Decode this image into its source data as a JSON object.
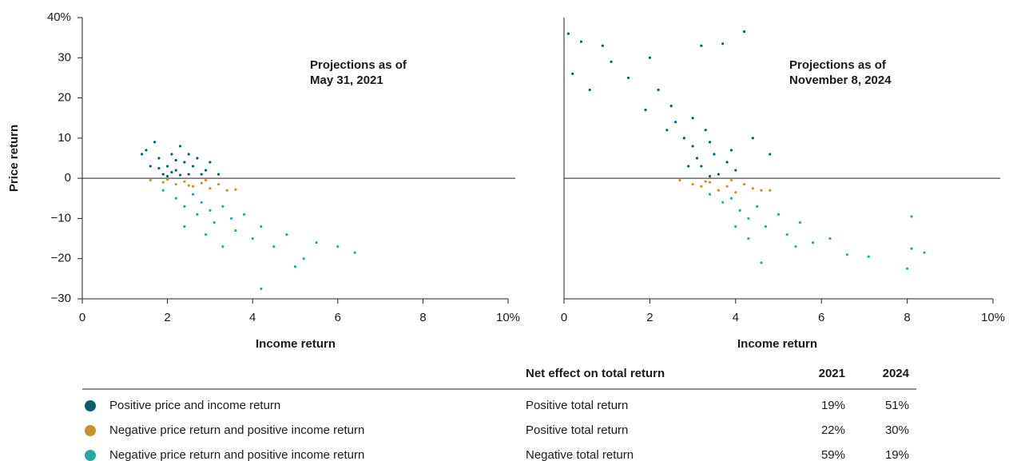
{
  "chart_data": [
    {
      "type": "scatter",
      "annotation": [
        "Projections as of",
        "May 31, 2021"
      ],
      "xlabel": "Income return",
      "ylabel": "Price return",
      "xlim": [
        0,
        10
      ],
      "ylim": [
        -30,
        40
      ],
      "xticks": [
        0,
        2,
        4,
        6,
        8,
        {
          "value": 10,
          "label": "10%"
        }
      ],
      "yticks": [
        {
          "value": -30,
          "label": "−30"
        },
        {
          "value": -20,
          "label": "−20"
        },
        {
          "value": -10,
          "label": "−10"
        },
        0,
        10,
        20,
        30,
        {
          "value": 40,
          "label": "40%"
        }
      ],
      "zero_line": true,
      "series": [
        {
          "name": "Positive price and income return",
          "color": "#04606e",
          "x": [
            1.5,
            1.7,
            1.8,
            2.0,
            2.1,
            2.2,
            2.3,
            2.4,
            2.5,
            2.6,
            1.9,
            2.0,
            2.2,
            2.7,
            2.9,
            3.0,
            1.6,
            1.4,
            2.8,
            2.1,
            2.3,
            1.8,
            2.5,
            3.2
          ],
          "values": [
            7,
            9,
            5,
            3,
            6,
            2,
            8,
            4,
            1,
            3,
            1,
            0.5,
            4.5,
            5,
            2,
            4,
            3,
            6,
            1,
            1.5,
            0.8,
            2.5,
            6,
            1
          ]
        },
        {
          "name": "Negative price return and positive income return",
          "color": "#c8902f",
          "x": [
            1.6,
            1.9,
            2.2,
            2.4,
            2.6,
            2.8,
            3.0,
            3.2,
            3.4,
            2.0,
            2.5,
            3.6,
            2.9
          ],
          "values": [
            -0.5,
            -1,
            -1.5,
            -0.8,
            -2,
            -1.2,
            -2.5,
            -1.5,
            -3,
            -0.3,
            -1.8,
            -2.8,
            -0.5
          ]
        },
        {
          "name": "Negative price return and positive income return",
          "color": "#22aaa1",
          "x": [
            1.9,
            2.2,
            2.4,
            2.6,
            2.7,
            2.8,
            3.0,
            3.1,
            3.3,
            3.5,
            3.6,
            3.8,
            4.0,
            4.2,
            4.5,
            4.8,
            5.2,
            5.5,
            6.0,
            6.4,
            4.2,
            3.3,
            2.4,
            2.9,
            5.0
          ],
          "values": [
            -3,
            -5,
            -7,
            -4,
            -9,
            -6,
            -8,
            -11,
            -7,
            -10,
            -13,
            -9,
            -15,
            -12,
            -17,
            -14,
            -20,
            -16,
            -17,
            -18.5,
            -27.5,
            -17,
            -12,
            -14,
            -22
          ]
        }
      ]
    },
    {
      "type": "scatter",
      "annotation": [
        "Projections as of",
        "November 8, 2024"
      ],
      "xlabel": "Income return",
      "xlim": [
        0,
        10
      ],
      "ylim": [
        -30,
        40
      ],
      "xticks": [
        0,
        2,
        4,
        6,
        8,
        {
          "value": 10,
          "label": "10%"
        }
      ],
      "zero_line": true,
      "series": [
        {
          "color": "#04606e",
          "x": [
            0.1,
            0.4,
            0.9,
            1.1,
            1.5,
            2.0,
            2.2,
            2.5,
            2.6,
            2.8,
            3.0,
            3.1,
            3.2,
            3.3,
            3.5,
            3.6,
            3.8,
            4.0,
            2.9,
            3.4,
            4.4,
            3.2,
            4.2,
            3.7,
            1.9,
            0.2,
            0.6,
            4.8,
            3.0,
            2.4,
            3.9,
            3.4
          ],
          "values": [
            36,
            34,
            33,
            29,
            25,
            30,
            22,
            18,
            14,
            10,
            8,
            5,
            3,
            12,
            6,
            1,
            4,
            2,
            3,
            9,
            10,
            33,
            36.5,
            33.5,
            17,
            26,
            22,
            6,
            15,
            12,
            7,
            0.5
          ]
        },
        {
          "color": "#c8902f",
          "x": [
            2.7,
            3.0,
            3.2,
            3.4,
            3.6,
            3.8,
            4.0,
            4.2,
            4.4,
            4.6,
            4.8,
            3.3,
            3.9
          ],
          "values": [
            -0.5,
            -1.5,
            -2,
            -1,
            -3,
            -2,
            -3.5,
            -1.5,
            -2.5,
            -3,
            -3,
            -0.8,
            -0.5
          ]
        },
        {
          "color": "#22aaa1",
          "x": [
            3.4,
            3.7,
            3.9,
            4.1,
            4.3,
            4.5,
            4.7,
            5.0,
            5.2,
            5.5,
            5.8,
            6.2,
            6.6,
            7.1,
            8.0,
            8.1,
            8.4,
            4.6,
            5.4,
            4.0,
            4.3,
            8.1
          ],
          "values": [
            -4,
            -6,
            -5,
            -8,
            -10,
            -7,
            -12,
            -9,
            -14,
            -11,
            -16,
            -15,
            -19,
            -19.5,
            -22.5,
            -9.5,
            -18.5,
            -21,
            -17,
            -12,
            -15,
            -17.5
          ]
        }
      ]
    }
  ],
  "table": {
    "header": [
      "Net effect on total return",
      "2021",
      "2024"
    ],
    "rows": [
      [
        "Positive total return",
        "19%",
        "51%"
      ],
      [
        "Positive total return",
        "22%",
        "30%"
      ],
      [
        "Negative total return",
        "59%",
        "19%"
      ]
    ]
  }
}
